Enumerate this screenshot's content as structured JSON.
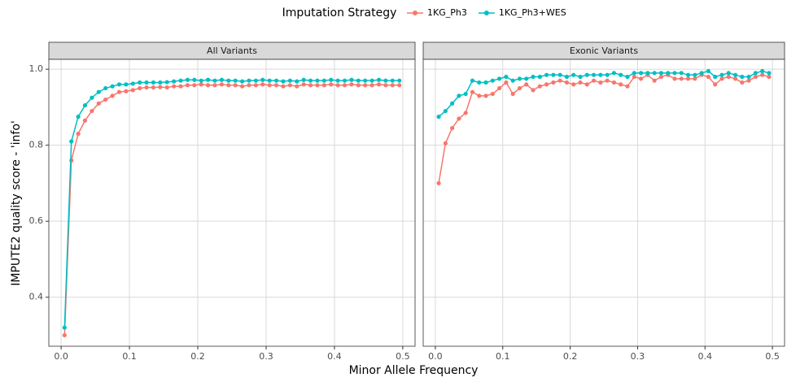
{
  "chart_data": {
    "type": "line",
    "legend_title": "Imputation Strategy",
    "x_label": "Minor Allele Frequency",
    "y_label": "IMPUTE2 quality score - 'info'",
    "xlim": [
      -0.018,
      0.518
    ],
    "ylim": [
      0.271,
      1.026
    ],
    "xticks": [
      {
        "value": 0,
        "label": "0.0"
      },
      0.1,
      0.2,
      0.3,
      0.4,
      0.5
    ],
    "yticks": [
      0.4,
      0.6,
      0.8,
      {
        "value": 1,
        "label": "1.0"
      }
    ],
    "grid": true,
    "legend_position": "top",
    "x": [
      0.005,
      0.015,
      0.025,
      0.035,
      0.045,
      0.055,
      0.065,
      0.075,
      0.085,
      0.095,
      0.105,
      0.115,
      0.125,
      0.135,
      0.145,
      0.155,
      0.165,
      0.175,
      0.185,
      0.195,
      0.205,
      0.215,
      0.225,
      0.235,
      0.245,
      0.255,
      0.265,
      0.275,
      0.285,
      0.295,
      0.305,
      0.315,
      0.325,
      0.335,
      0.345,
      0.355,
      0.365,
      0.375,
      0.385,
      0.395,
      0.405,
      0.415,
      0.425,
      0.435,
      0.445,
      0.455,
      0.465,
      0.475,
      0.485,
      0.495
    ],
    "facets": [
      {
        "title": "All Variants",
        "series": [
          {
            "name": "1KG_Ph3",
            "color": "#F8766D",
            "values": [
              0.3,
              0.76,
              0.83,
              0.865,
              0.89,
              0.91,
              0.92,
              0.93,
              0.94,
              0.942,
              0.945,
              0.95,
              0.952,
              0.952,
              0.953,
              0.952,
              0.955,
              0.955,
              0.958,
              0.958,
              0.96,
              0.958,
              0.958,
              0.96,
              0.958,
              0.958,
              0.955,
              0.958,
              0.958,
              0.96,
              0.958,
              0.958,
              0.955,
              0.958,
              0.955,
              0.96,
              0.958,
              0.958,
              0.958,
              0.96,
              0.958,
              0.958,
              0.96,
              0.958,
              0.958,
              0.958,
              0.96,
              0.958,
              0.958,
              0.958
            ]
          },
          {
            "name": "1KG_Ph3+WES",
            "color": "#00BFC4",
            "values": [
              0.32,
              0.81,
              0.875,
              0.905,
              0.925,
              0.94,
              0.95,
              0.955,
              0.96,
              0.96,
              0.962,
              0.965,
              0.965,
              0.965,
              0.965,
              0.966,
              0.968,
              0.97,
              0.972,
              0.972,
              0.97,
              0.972,
              0.97,
              0.972,
              0.97,
              0.97,
              0.968,
              0.97,
              0.97,
              0.972,
              0.97,
              0.97,
              0.968,
              0.97,
              0.968,
              0.972,
              0.97,
              0.97,
              0.97,
              0.972,
              0.97,
              0.97,
              0.972,
              0.97,
              0.97,
              0.97,
              0.972,
              0.97,
              0.97,
              0.97
            ]
          }
        ]
      },
      {
        "title": "Exonic Variants",
        "series": [
          {
            "name": "1KG_Ph3",
            "color": "#F8766D",
            "values": [
              0.7,
              0.805,
              0.845,
              0.87,
              0.885,
              0.94,
              0.93,
              0.93,
              0.935,
              0.95,
              0.965,
              0.935,
              0.95,
              0.96,
              0.945,
              0.955,
              0.96,
              0.965,
              0.97,
              0.965,
              0.96,
              0.965,
              0.96,
              0.97,
              0.965,
              0.97,
              0.965,
              0.96,
              0.955,
              0.98,
              0.975,
              0.985,
              0.97,
              0.98,
              0.985,
              0.975,
              0.975,
              0.975,
              0.975,
              0.985,
              0.98,
              0.96,
              0.975,
              0.98,
              0.975,
              0.965,
              0.97,
              0.98,
              0.985,
              0.98
            ]
          },
          {
            "name": "1KG_Ph3+WES",
            "color": "#00BFC4",
            "values": [
              0.875,
              0.89,
              0.91,
              0.93,
              0.935,
              0.97,
              0.965,
              0.965,
              0.97,
              0.975,
              0.98,
              0.97,
              0.975,
              0.975,
              0.98,
              0.98,
              0.985,
              0.985,
              0.985,
              0.98,
              0.985,
              0.98,
              0.985,
              0.985,
              0.985,
              0.985,
              0.99,
              0.985,
              0.98,
              0.99,
              0.99,
              0.99,
              0.99,
              0.99,
              0.99,
              0.99,
              0.99,
              0.985,
              0.985,
              0.99,
              0.995,
              0.98,
              0.985,
              0.99,
              0.985,
              0.98,
              0.98,
              0.99,
              0.995,
              0.99
            ]
          }
        ]
      }
    ]
  }
}
